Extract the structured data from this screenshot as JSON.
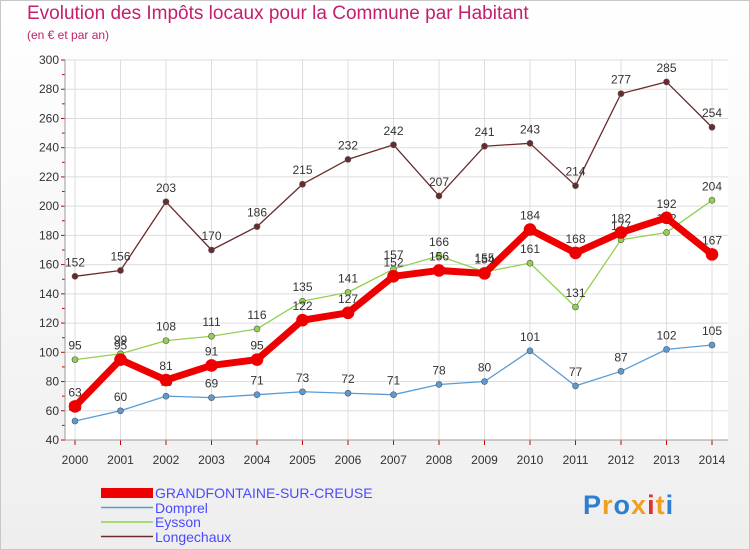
{
  "title": "Evolution des Impôts locaux pour la Commune par Habitant",
  "subtitle": "(en € et par an)",
  "logo_text": "Proxiti",
  "chart_data": {
    "type": "line",
    "title": "Evolution des Impôts locaux pour la Commune par Habitant",
    "subtitle": "(en € et par an)",
    "xlabel": "",
    "ylabel": "",
    "ylim": [
      40,
      300
    ],
    "yticks": [
      "40",
      "60",
      "80",
      "100",
      "120",
      "140",
      "160",
      "180",
      "200",
      "220",
      "240",
      "260",
      "280",
      "300"
    ],
    "categories": [
      "2000",
      "2001",
      "2002",
      "2003",
      "2004",
      "2005",
      "2006",
      "2007",
      "2008",
      "2009",
      "2010",
      "2011",
      "2012",
      "2013",
      "2014"
    ],
    "legend_position": "bottom-left",
    "series": [
      {
        "name": "GRANDFONTAINE-SUR-CREUSE",
        "color": "#ee0000",
        "emphasis": true,
        "values": [
          63,
          95,
          81,
          91,
          95,
          122,
          127,
          152,
          156,
          154,
          184,
          168,
          182,
          192,
          167
        ]
      },
      {
        "name": "Domprel",
        "color": "#5b9bd5",
        "values": [
          53,
          60,
          70,
          69,
          71,
          73,
          72,
          71,
          78,
          80,
          101,
          77,
          87,
          102,
          105
        ]
      },
      {
        "name": "Eysson",
        "color": "#92d050",
        "values": [
          95,
          99,
          108,
          111,
          116,
          135,
          141,
          157,
          166,
          155,
          161,
          131,
          177,
          182,
          204
        ]
      },
      {
        "name": "Longechaux",
        "color": "#6b2b2b",
        "values": [
          152,
          156,
          203,
          170,
          186,
          215,
          232,
          242,
          207,
          241,
          243,
          214,
          277,
          285,
          254
        ]
      }
    ]
  }
}
